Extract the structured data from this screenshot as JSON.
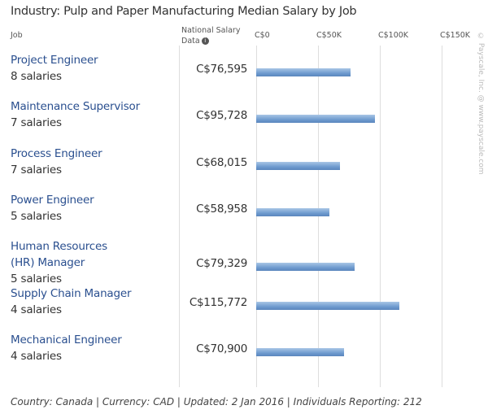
{
  "title": "Industry: Pulp and Paper Manufacturing Median Salary by Job",
  "headers": {
    "job": "Job",
    "national": "National Salary Data",
    "info_icon": "i"
  },
  "watermark": "© Payscale, Inc. @ www.payscale.com",
  "chart_data": {
    "type": "bar",
    "orientation": "horizontal",
    "title": "Industry: Pulp and Paper Manufacturing Median Salary by Job",
    "xlim": [
      0,
      150000
    ],
    "ticks": [
      {
        "value": 0,
        "label": "C$0"
      },
      {
        "value": 50000,
        "label": "C$50K"
      },
      {
        "value": 100000,
        "label": "C$100K"
      },
      {
        "value": 150000,
        "label": "C$150K"
      }
    ],
    "rows": [
      {
        "job": "Project Engineer",
        "count": "8 salaries",
        "value": 76595,
        "label": "C$76,595"
      },
      {
        "job": "Maintenance Supervisor",
        "count": "7 salaries",
        "value": 95728,
        "label": "C$95,728"
      },
      {
        "job": "Process Engineer",
        "count": "7 salaries",
        "value": 68015,
        "label": "C$68,015"
      },
      {
        "job": "Power Engineer",
        "count": "5 salaries",
        "value": 58958,
        "label": "C$58,958"
      },
      {
        "job": "Human Resources (HR) Manager",
        "count": "5 salaries",
        "value": 79329,
        "label": "C$79,329"
      },
      {
        "job": "Supply Chain Manager",
        "count": "4 salaries",
        "value": 115772,
        "label": "C$115,772"
      },
      {
        "job": "Mechanical Engineer",
        "count": "4 salaries",
        "value": 70900,
        "label": "C$70,900"
      }
    ]
  },
  "footer": "Country: Canada | Currency: CAD | Updated: 2 Jan 2016 | Individuals Reporting: 212"
}
